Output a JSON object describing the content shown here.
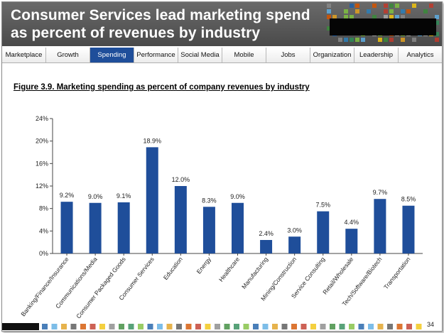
{
  "header": {
    "title_line1": "Consumer Services lead marketing spend",
    "title_line2": "as percent of revenues by industry"
  },
  "nav": {
    "tabs": [
      "Marketplace",
      "Growth",
      "Spending",
      "Performance",
      "Social Media",
      "Mobile",
      "Jobs",
      "Organization",
      "Leadership",
      "Analytics"
    ],
    "active": "Spending"
  },
  "figure_title": "Figure 3.9.  Marketing spending as percent of company revenues by industry",
  "page_number": "34",
  "colors": {
    "bar": "#1f4e9a",
    "header_bg": "#555555",
    "active_tab": "#1f4e9a"
  },
  "chart_data": {
    "type": "bar",
    "title": "Figure 3.9.  Marketing spending as percent of company revenues by industry",
    "xlabel": "",
    "ylabel": "",
    "categories": [
      "Banking/Finance/Insurance",
      "Communications/Media",
      "Consumer Packaged Goods",
      "Consumer Services",
      "Education",
      "Energy",
      "Healthcare",
      "Manufacturing",
      "Mining/Construction",
      "Service Consulting",
      "Retail/Wholesale",
      "Tech/Software/Biotech",
      "Transportation"
    ],
    "values": [
      9.2,
      9.0,
      9.1,
      18.9,
      12.0,
      8.3,
      9.0,
      2.4,
      3.0,
      7.5,
      4.4,
      9.7,
      8.5
    ],
    "value_labels": [
      "9.2%",
      "9.0%",
      "9.1%",
      "18.9%",
      "12.0%",
      "8.3%",
      "9.0%",
      "2.4%",
      "3.0%",
      "7.5%",
      "4.4%",
      "9.7%",
      "8.5%"
    ],
    "y_ticks": [
      0,
      4,
      8,
      12,
      16,
      20,
      24
    ],
    "y_tick_labels": [
      "0%",
      "4%",
      "8%",
      "12%",
      "16%",
      "20%",
      "24%"
    ],
    "ylim": [
      0,
      24
    ],
    "grid": false,
    "legend": "none"
  }
}
